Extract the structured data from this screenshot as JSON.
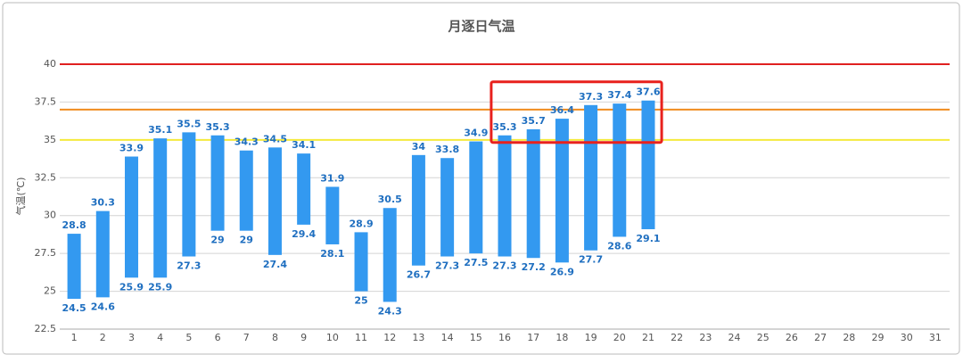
{
  "chart_data": {
    "type": "range_bar",
    "title": "月逐日气温",
    "y_label": "气温(℃)",
    "categories": [
      "1",
      "2",
      "3",
      "4",
      "5",
      "6",
      "7",
      "8",
      "9",
      "10",
      "11",
      "12",
      "13",
      "14",
      "15",
      "16",
      "17",
      "18",
      "19",
      "20",
      "21",
      "22",
      "23",
      "24",
      "25",
      "26",
      "27",
      "28",
      "29",
      "30",
      "31"
    ],
    "low": [
      24.5,
      24.6,
      25.9,
      25.9,
      27.3,
      29,
      29,
      27.4,
      29.4,
      28.1,
      25,
      24.3,
      26.7,
      27.3,
      27.5,
      27.3,
      27.2,
      26.9,
      27.7,
      28.6,
      29.1,
      null,
      null,
      null,
      null,
      null,
      null,
      null,
      null,
      null,
      null
    ],
    "high": [
      28.8,
      30.3,
      33.9,
      35.1,
      35.5,
      35.3,
      34.3,
      34.5,
      34.1,
      31.9,
      28.9,
      30.5,
      34,
      33.8,
      34.9,
      35.3,
      35.7,
      36.4,
      37.3,
      37.4,
      37.6,
      null,
      null,
      null,
      null,
      null,
      null,
      null,
      null,
      null,
      null
    ],
    "color": "#3399f0",
    "label_color": "#1f6fc0",
    "ylim": [
      22.5,
      40
    ],
    "yticks": [
      22.5,
      25,
      27.5,
      30,
      32.5,
      35,
      37.5,
      40
    ],
    "grid": true,
    "reference_lines": [
      {
        "value": 40,
        "color": "#e02020"
      },
      {
        "value": 37,
        "color": "#f08c1e"
      },
      {
        "value": 35,
        "color": "#f5ea3c"
      }
    ],
    "highlight": {
      "start": "16",
      "end": "21",
      "color": "#e8211d"
    }
  }
}
